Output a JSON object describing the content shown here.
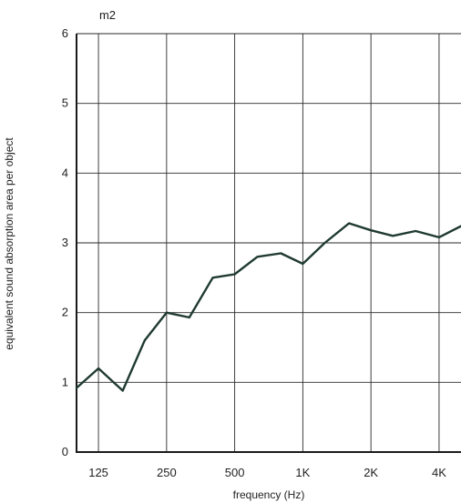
{
  "chart_data": {
    "type": "line",
    "unit_label": "m2",
    "xlabel": "frequency (Hz)",
    "ylabel": "equivalent sound absorption area per object",
    "ylim": [
      0,
      6
    ],
    "yticks": [
      0,
      1,
      2,
      3,
      4,
      5,
      6
    ],
    "x_scale": "log",
    "xlim_hz": [
      100,
      5000
    ],
    "x_tick_labels": [
      "125",
      "250",
      "500",
      "1K",
      "2K",
      "4K"
    ],
    "x_tick_values_hz": [
      125,
      250,
      500,
      1000,
      2000,
      4000
    ],
    "grid": true,
    "line_color": "#1f3a30",
    "series": [
      {
        "x": [
          100,
          125,
          160,
          200,
          250,
          315,
          400,
          500,
          630,
          800,
          1000,
          1250,
          1600,
          2000,
          2500,
          3150,
          4000,
          5000
        ],
        "y": [
          0.92,
          1.2,
          0.88,
          1.6,
          2.0,
          1.93,
          2.5,
          2.55,
          2.8,
          2.85,
          2.7,
          3.0,
          3.28,
          3.18,
          3.1,
          3.17,
          3.08,
          3.24
        ]
      }
    ]
  }
}
